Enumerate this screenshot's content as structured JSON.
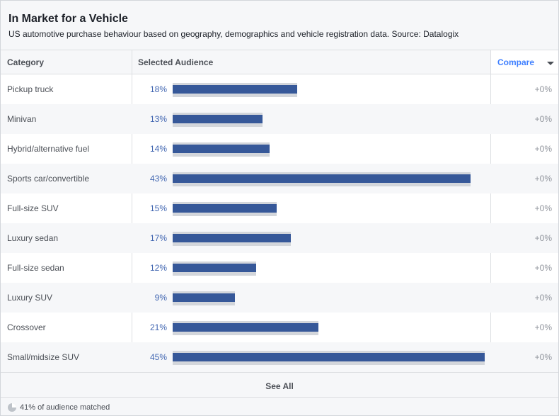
{
  "header": {
    "title": "In Market for a Vehicle",
    "subtitle": "US automotive purchase behaviour based on geography, demographics and vehicle registration data. Source: Datalogix"
  },
  "columns": {
    "category": "Category",
    "audience": "Selected Audience",
    "compare": "Compare"
  },
  "rows": [
    {
      "category": "Pickup truck",
      "percent_label": "18%",
      "value": 18,
      "delta": "+0%"
    },
    {
      "category": "Minivan",
      "percent_label": "13%",
      "value": 13,
      "delta": "+0%"
    },
    {
      "category": "Hybrid/alternative fuel",
      "percent_label": "14%",
      "value": 14,
      "delta": "+0%"
    },
    {
      "category": "Sports car/convertible",
      "percent_label": "43%",
      "value": 43,
      "delta": "+0%"
    },
    {
      "category": "Full-size SUV",
      "percent_label": "15%",
      "value": 15,
      "delta": "+0%"
    },
    {
      "category": "Luxury sedan",
      "percent_label": "17%",
      "value": 17,
      "delta": "+0%"
    },
    {
      "category": "Full-size sedan",
      "percent_label": "12%",
      "value": 12,
      "delta": "+0%"
    },
    {
      "category": "Luxury SUV",
      "percent_label": "9%",
      "value": 9,
      "delta": "+0%"
    },
    {
      "category": "Crossover",
      "percent_label": "21%",
      "value": 21,
      "delta": "+0%"
    },
    {
      "category": "Small/midsize SUV",
      "percent_label": "45%",
      "value": 45,
      "delta": "+0%"
    }
  ],
  "see_all": "See All",
  "footer": {
    "matched_text": "41% of audience matched",
    "icon": "pie-chart-icon"
  },
  "colors": {
    "bar": "#365899",
    "track": "#d3d6db",
    "percent_text": "#4267b2",
    "compare_link": "#4080ff",
    "delta_text": "#90949c"
  }
}
